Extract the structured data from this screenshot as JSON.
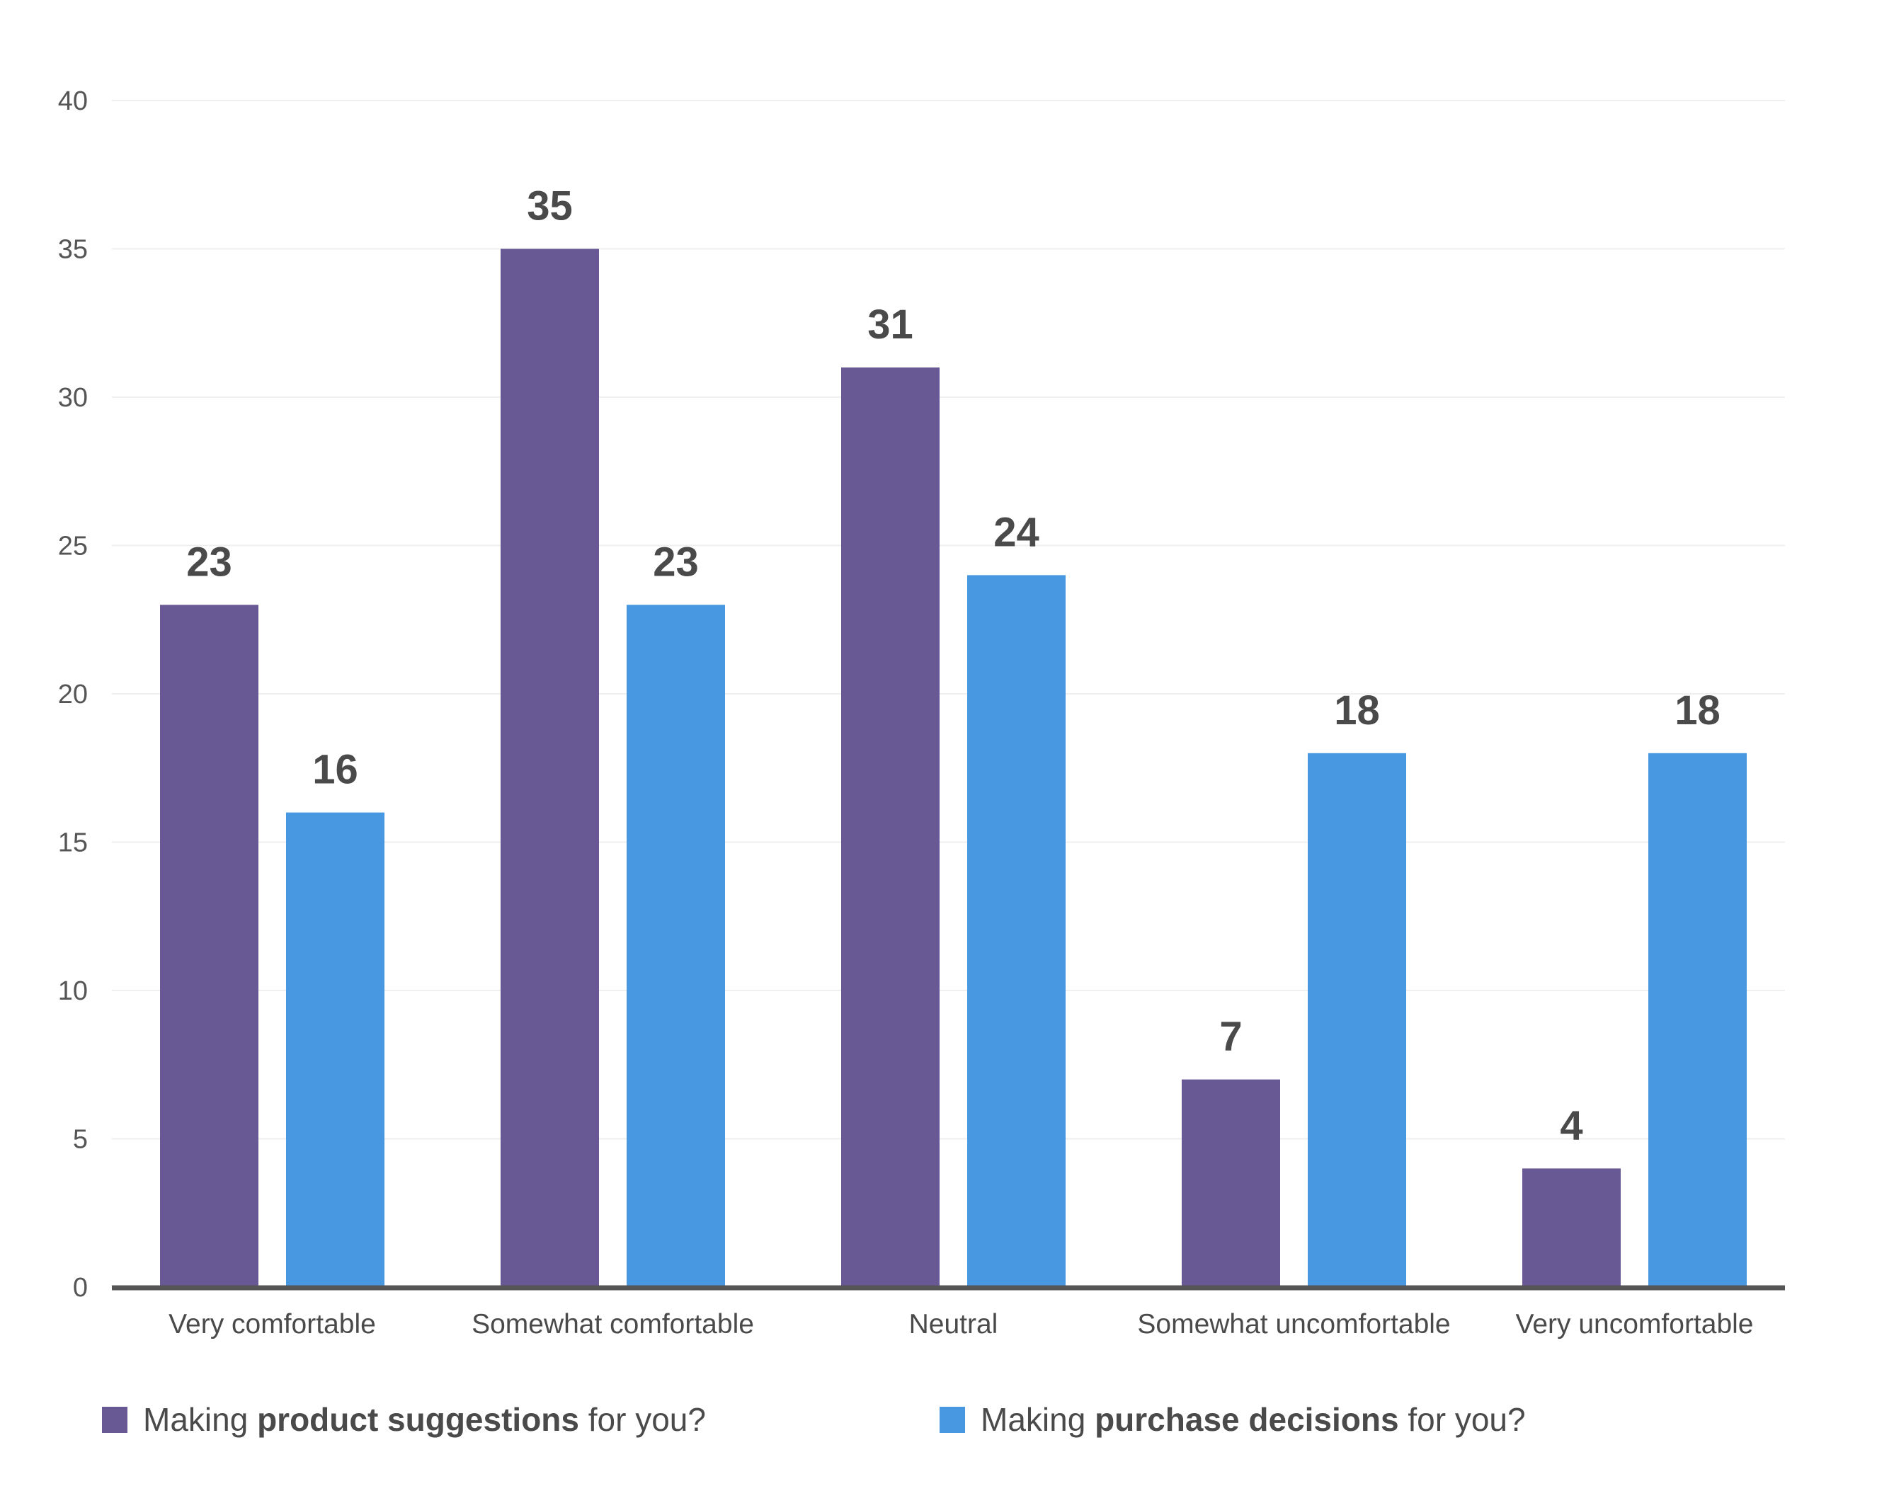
{
  "chart_data": {
    "type": "bar",
    "title": "",
    "xlabel": "",
    "ylabel": "",
    "ylim": [
      0,
      40
    ],
    "yticks": [
      0,
      5,
      10,
      15,
      20,
      25,
      30,
      35,
      40
    ],
    "grid": true,
    "legend_position": "bottom",
    "categories": [
      "Very comfortable",
      "Somewhat comfortable",
      "Neutral",
      "Somewhat uncomfortable",
      "Very uncomfortable"
    ],
    "series": [
      {
        "name": "Making product suggestions for you?",
        "legend_parts": [
          "Making ",
          "product suggestions",
          " for you?"
        ],
        "color": "#685893",
        "values": [
          23,
          35,
          31,
          7,
          4
        ]
      },
      {
        "name": "Making purchase decisions for you?",
        "legend_parts": [
          "Making ",
          "purchase decisions",
          " for you?"
        ],
        "color": "#4798e0",
        "values": [
          16,
          23,
          24,
          18,
          18
        ]
      }
    ]
  }
}
